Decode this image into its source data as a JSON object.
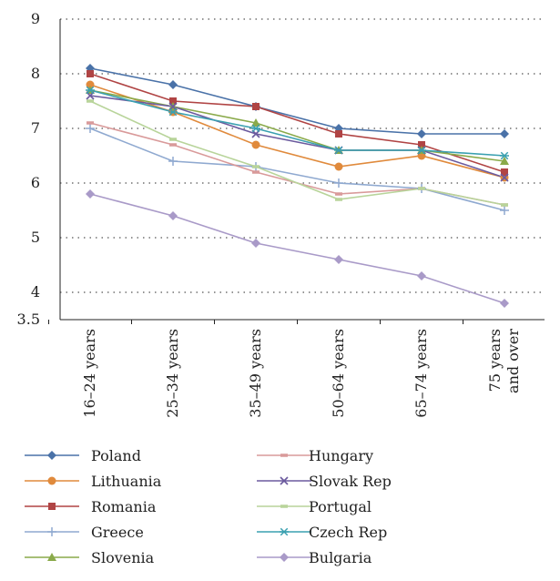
{
  "chart_data": {
    "type": "line",
    "title": "",
    "xlabel": "",
    "ylabel": "",
    "ylim": [
      3.5,
      9
    ],
    "yticks": [
      9,
      8,
      7,
      6,
      5,
      4,
      3.5
    ],
    "grid": true,
    "legend_position": "bottom",
    "categories": [
      [
        "16–24 years"
      ],
      [
        "25–34 years"
      ],
      [
        "35–49 years"
      ],
      [
        "50–64 years"
      ],
      [
        "65–74 years"
      ],
      [
        "75 years",
        "and over"
      ]
    ],
    "series": [
      {
        "name": "Poland",
        "color": "#4a72a8",
        "marker": "diamond",
        "values": [
          8.1,
          7.8,
          7.4,
          7.0,
          6.9,
          6.9
        ]
      },
      {
        "name": "Lithuania",
        "color": "#e08a3c",
        "marker": "circle",
        "values": [
          7.8,
          7.3,
          6.7,
          6.3,
          6.5,
          6.1
        ]
      },
      {
        "name": "Romania",
        "color": "#b04444",
        "marker": "square",
        "values": [
          8.0,
          7.5,
          7.4,
          6.9,
          6.7,
          6.2
        ]
      },
      {
        "name": "Greece",
        "color": "#8fa9d0",
        "marker": "plus",
        "values": [
          7.0,
          6.4,
          6.3,
          6.0,
          5.9,
          5.5
        ]
      },
      {
        "name": "Slovenia",
        "color": "#8aaa4a",
        "marker": "triangle",
        "values": [
          7.7,
          7.4,
          7.1,
          6.6,
          6.6,
          6.4
        ]
      },
      {
        "name": "Hungary",
        "color": "#d99a9a",
        "marker": "dash",
        "values": [
          7.1,
          6.7,
          6.2,
          5.8,
          5.9,
          5.6
        ]
      },
      {
        "name": "Slovak Rep",
        "color": "#6b5a9e",
        "marker": "x",
        "values": [
          7.6,
          7.4,
          6.9,
          6.6,
          6.6,
          6.1
        ]
      },
      {
        "name": "Portugal",
        "color": "#b8d49a",
        "marker": "dash",
        "values": [
          7.5,
          6.8,
          6.3,
          5.7,
          5.9,
          5.6
        ]
      },
      {
        "name": "Czech Rep",
        "color": "#3aa0b0",
        "marker": "star",
        "values": [
          7.7,
          7.3,
          7.0,
          6.6,
          6.6,
          6.5
        ]
      },
      {
        "name": "Bulgaria",
        "color": "#a99ac8",
        "marker": "diamond",
        "values": [
          5.8,
          5.4,
          4.9,
          4.6,
          4.3,
          3.8
        ]
      }
    ]
  }
}
